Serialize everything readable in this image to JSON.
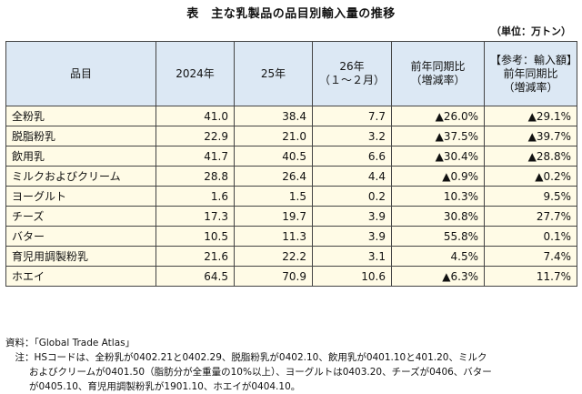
{
  "title": "表　主な乳製品の品目別輸入量の推移",
  "unit": "（単位：万トン）",
  "table": {
    "headers": {
      "item": "品目",
      "y2024": "2024年",
      "y25": "25年",
      "y26_line1": "26年",
      "y26_line2": "（１～２月）",
      "yoy_line1": "前年同期比",
      "yoy_line2": "（増減率）",
      "ref_line1": "【参考：輸入額】",
      "ref_line2": "前年同期比",
      "ref_line3": "（増減率）"
    },
    "rows": [
      {
        "item": "全粉乳",
        "y2024": "41.0",
        "y25": "38.4",
        "y26": "7.7",
        "yoy": "▲26.0%",
        "ref": "▲29.1%"
      },
      {
        "item": "脱脂粉乳",
        "y2024": "22.9",
        "y25": "21.0",
        "y26": "3.2",
        "yoy": "▲37.5%",
        "ref": "▲39.7%"
      },
      {
        "item": "飲用乳",
        "y2024": "41.7",
        "y25": "40.5",
        "y26": "6.6",
        "yoy": "▲30.4%",
        "ref": "▲28.8%"
      },
      {
        "item": "ミルクおよびクリーム",
        "y2024": "28.8",
        "y25": "26.4",
        "y26": "4.4",
        "yoy": "▲0.9%",
        "ref": "▲0.2%"
      },
      {
        "item": "ヨーグルト",
        "y2024": "1.6",
        "y25": "1.5",
        "y26": "0.2",
        "yoy": "10.3%",
        "ref": "9.5%"
      },
      {
        "item": "チーズ",
        "y2024": "17.3",
        "y25": "19.7",
        "y26": "3.9",
        "yoy": "30.8%",
        "ref": "27.7%"
      },
      {
        "item": "バター",
        "y2024": "10.5",
        "y25": "11.3",
        "y26": "3.9",
        "yoy": "55.8%",
        "ref": "0.1%"
      },
      {
        "item": "育児用調製粉乳",
        "y2024": "21.6",
        "y25": "22.2",
        "y26": "3.1",
        "yoy": "4.5%",
        "ref": "7.4%"
      },
      {
        "item": "ホエイ",
        "y2024": "64.5",
        "y25": "70.9",
        "y26": "10.6",
        "yoy": "▲6.3%",
        "ref": "11.7%"
      }
    ]
  },
  "notes": {
    "source": "資料：「Global Trade Atlas」",
    "note_line1": "　注：HSコードは、全粉乳が0402.21と0402.29、脱脂粉乳が0402.10、飲用乳が0401.10と401.20、ミルク",
    "note_line2": "およびクリームが0401.50（脂肪分が全重量の10%以上）、ヨーグルトは0403.20、チーズが0406、バター",
    "note_line3": "が0405.10、育児用調製粉乳が1901.10、ホエイが0404.10。"
  },
  "colors": {
    "header_bg": "#dce8f4",
    "body_bg": "#fffbe6",
    "border": "#444444"
  }
}
